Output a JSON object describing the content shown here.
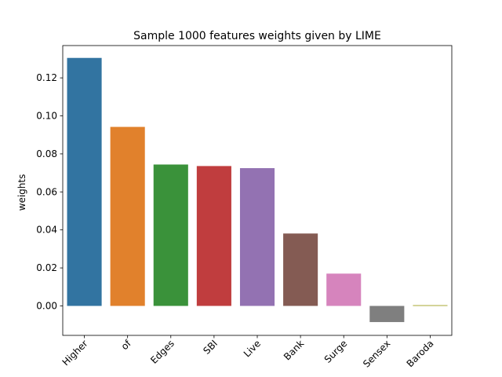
{
  "chart_data": {
    "type": "bar",
    "title": "Sample 1000 features weights given by LIME",
    "xlabel": "",
    "ylabel": "weights",
    "categories": [
      "Higher",
      "of",
      "Edges",
      "SBI",
      "Live",
      "Bank",
      "Surge",
      "Sensex",
      "Baroda"
    ],
    "values": [
      0.1305,
      0.0942,
      0.0744,
      0.0736,
      0.0725,
      0.0381,
      0.017,
      -0.0085,
      0.0004
    ],
    "colors": [
      "#3274a1",
      "#e1812c",
      "#3a923a",
      "#c03d3e",
      "#9372b2",
      "#845b53",
      "#d684bd",
      "#7f7f7f",
      "#a9aa35"
    ],
    "ylim": [
      -0.0155,
      0.137
    ],
    "yticks": [
      0.0,
      0.02,
      0.04,
      0.06,
      0.08,
      0.1,
      0.12
    ],
    "ytick_labels": [
      "0.00",
      "0.02",
      "0.04",
      "0.06",
      "0.08",
      "0.10",
      "0.12"
    ],
    "grid": false,
    "legend": "none"
  }
}
